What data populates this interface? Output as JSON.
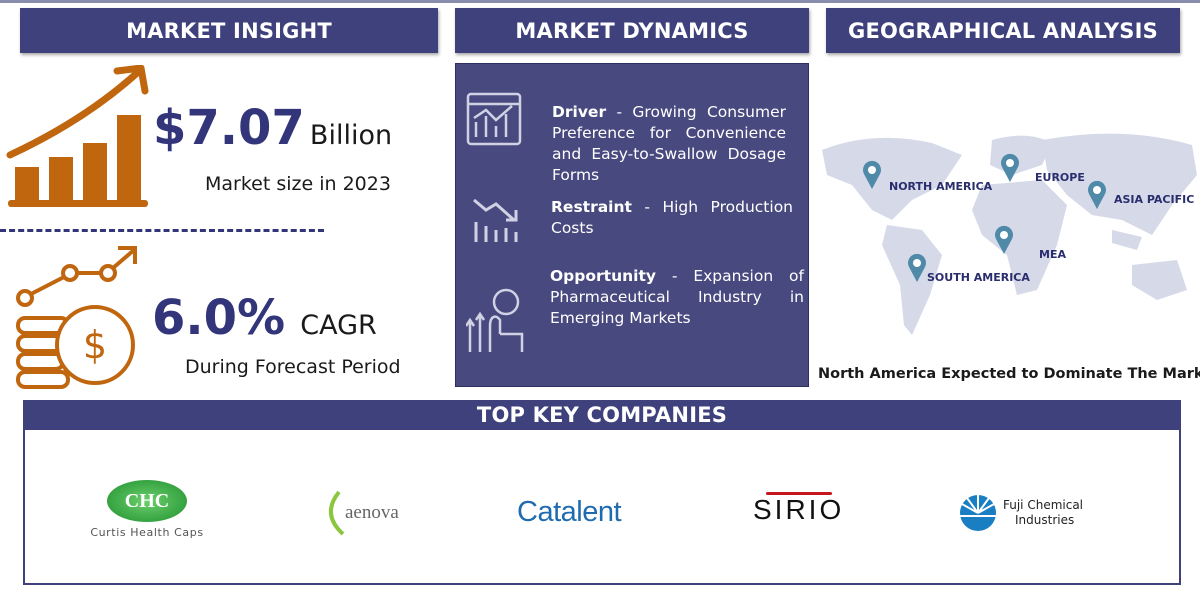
{
  "colors": {
    "header": "#3f417d",
    "panel": "#48497f",
    "accent": "#c0660f",
    "value": "#33357a",
    "pin": "#4f8aa8"
  },
  "insight": {
    "header": "MARKET INSIGHT",
    "market_value": "$7.07",
    "market_unit": "Billion",
    "market_caption": "Market size in 2023",
    "cagr_value": "6.0%",
    "cagr_unit": "CAGR",
    "cagr_caption": "During Forecast Period",
    "icons": [
      "bar-chart-growth-icon",
      "coins-growth-icon"
    ]
  },
  "dynamics": {
    "header": "MARKET DYNAMICS",
    "items": [
      {
        "label": "Driver",
        "text": " - Growing Consumer Preference for Convenience and Easy-to-Swallow Dosage Forms",
        "icon": "analytics-dashboard-icon"
      },
      {
        "label": "Restraint",
        "text": " - High Production Costs",
        "icon": "declining-chart-icon"
      },
      {
        "label": "Opportunity",
        "text": " - Expansion of Pharmaceutical Industry in Emerging Markets",
        "icon": "growth-hand-icon"
      }
    ]
  },
  "geo": {
    "header": "GEOGRAPHICAL ANALYSIS",
    "regions": [
      "NORTH AMERICA",
      "EUROPE",
      "ASIA PACIFIC",
      "MEA",
      "SOUTH AMERICA"
    ],
    "caption": "North America Expected to Dominate The Market"
  },
  "companies": {
    "header": "TOP KEY COMPANIES",
    "logos": [
      {
        "mark": "CHC",
        "name": "Curtis Health Caps"
      },
      {
        "name": "aenova"
      },
      {
        "name": "Catalent"
      },
      {
        "name": "SIRIO"
      },
      {
        "name": "Fuji Chemical",
        "name2": "Industries"
      }
    ]
  }
}
